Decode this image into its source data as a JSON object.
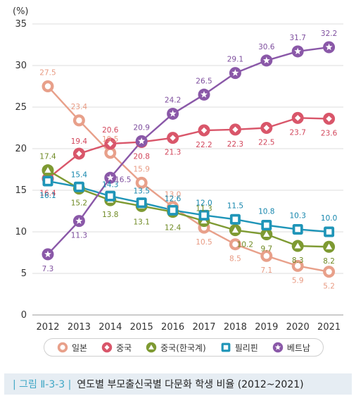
{
  "chart_data": {
    "type": "line",
    "unit_label": "(%)",
    "x": [
      "2012",
      "2013",
      "2014",
      "2015",
      "2016",
      "2017",
      "2018",
      "2019",
      "2020",
      "2021"
    ],
    "ylim": [
      0,
      35
    ],
    "yticks": [
      "0",
      "5",
      "10",
      "15",
      "20",
      "25",
      "30",
      "35"
    ],
    "grid": "horizontal",
    "legend_position": "bottom",
    "series": [
      {
        "name": "일본",
        "marker": "circle",
        "color": "#e8a08a",
        "label_color": "#e89a82",
        "values": [
          27.5,
          23.4,
          19.5,
          15.9,
          13.0,
          10.5,
          8.5,
          7.1,
          5.9,
          5.2
        ],
        "labels": [
          "27.5",
          "23.4",
          "19.5",
          "15.9",
          "13.0",
          "10.5",
          "8.5",
          "7.1",
          "5.9",
          "5.2"
        ]
      },
      {
        "name": "중국",
        "marker": "diamond",
        "color": "#d9566a",
        "label_color": "#d2475c",
        "values": [
          16.4,
          19.4,
          20.6,
          20.8,
          21.3,
          22.2,
          22.3,
          22.5,
          23.7,
          23.6
        ],
        "labels": [
          "16.4",
          "19.4",
          "20.6",
          "20.8",
          "21.3",
          "22.2",
          "22.3",
          "22.5",
          "23.7",
          "23.6"
        ]
      },
      {
        "name": "중국(한국계)",
        "marker": "triangle",
        "color": "#7e9a32",
        "label_color": "#6f8a24",
        "values": [
          17.4,
          15.2,
          13.8,
          13.1,
          12.4,
          11.3,
          10.2,
          9.7,
          8.3,
          8.2
        ],
        "labels": [
          "17.4",
          "15.2",
          "13.8",
          "13.1",
          "12.4",
          "11.3",
          "10.2",
          "9.7",
          "8.3",
          "8.2"
        ]
      },
      {
        "name": "필리핀",
        "marker": "square",
        "color": "#1f95b8",
        "label_color": "#1586ad",
        "values": [
          16.1,
          15.4,
          14.3,
          13.5,
          12.6,
          12.0,
          11.5,
          10.8,
          10.3,
          10.0
        ],
        "labels": [
          "16.1",
          "15.4",
          "14.3",
          "13.5",
          "12.6",
          "12.0",
          "11.5",
          "10.8",
          "10.3",
          "10.0"
        ]
      },
      {
        "name": "베트남",
        "marker": "star",
        "color": "#8a58a8",
        "label_color": "#7e4e9e",
        "values": [
          7.3,
          11.3,
          16.5,
          20.9,
          24.2,
          26.5,
          29.1,
          30.6,
          31.7,
          32.2
        ],
        "labels": [
          "7.3",
          "11.3",
          "16.5",
          "20.9",
          "24.2",
          "26.5",
          "29.1",
          "30.6",
          "31.7",
          "32.2"
        ]
      }
    ]
  },
  "caption": {
    "figure_label": "| 그림 Ⅱ-3-3 |",
    "text": "연도별 부모출신국별 다문화 학생 비율 (2012~2021)"
  }
}
